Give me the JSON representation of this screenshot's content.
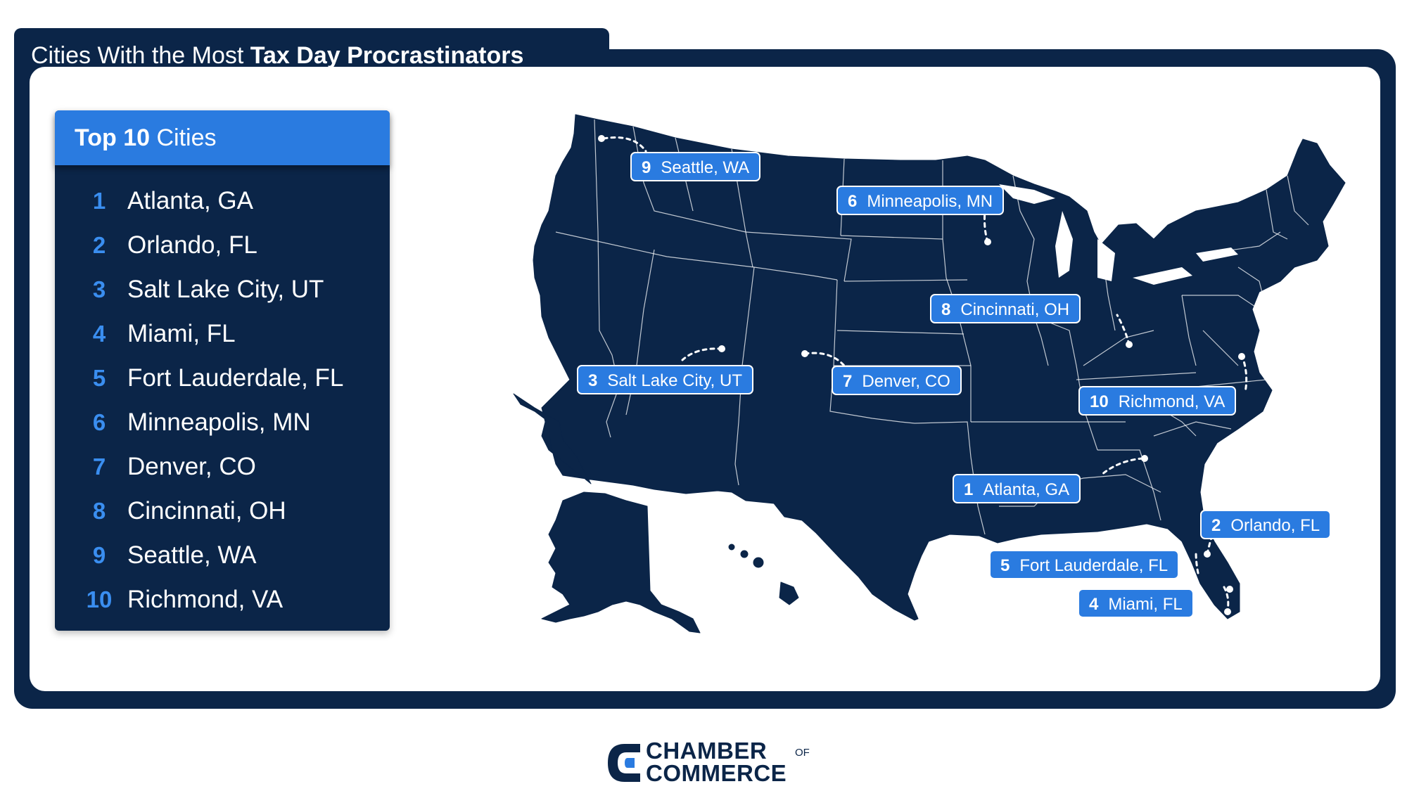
{
  "title": {
    "regular": "Cities With the Most ",
    "bold": "Tax Day Procrastinators"
  },
  "panel": {
    "heading_bold": "Top 10",
    "heading_regular": " Cities",
    "items": [
      {
        "rank": "1",
        "city": "Atlanta, GA"
      },
      {
        "rank": "2",
        "city": "Orlando, FL"
      },
      {
        "rank": "3",
        "city": "Salt Lake City, UT"
      },
      {
        "rank": "4",
        "city": "Miami, FL"
      },
      {
        "rank": "5",
        "city": "Fort Lauderdale, FL"
      },
      {
        "rank": "6",
        "city": "Minneapolis, MN"
      },
      {
        "rank": "7",
        "city": "Denver, CO"
      },
      {
        "rank": "8",
        "city": "Cincinnati, OH"
      },
      {
        "rank": "9",
        "city": "Seattle, WA"
      },
      {
        "rank": "10",
        "city": "Richmond, VA"
      }
    ]
  },
  "map_labels": [
    {
      "rank": "9",
      "city": "Seattle, WA"
    },
    {
      "rank": "6",
      "city": "Minneapolis, MN"
    },
    {
      "rank": "8",
      "city": "Cincinnati, OH"
    },
    {
      "rank": "3",
      "city": "Salt Lake City, UT"
    },
    {
      "rank": "7",
      "city": "Denver, CO"
    },
    {
      "rank": "10",
      "city": "Richmond, VA"
    },
    {
      "rank": "1",
      "city": "Atlanta, GA"
    },
    {
      "rank": "2",
      "city": "Orlando, FL"
    },
    {
      "rank": "5",
      "city": "Fort Lauderdale, FL"
    },
    {
      "rank": "4",
      "city": "Miami, FL"
    }
  ],
  "logo": {
    "line1": "CHAMBER",
    "of": "OF",
    "line2": "COMMERCE"
  },
  "colors": {
    "navy": "#0b2548",
    "accent_blue": "#2a7be0",
    "rank_blue": "#3a8ef0",
    "white": "#ffffff"
  }
}
